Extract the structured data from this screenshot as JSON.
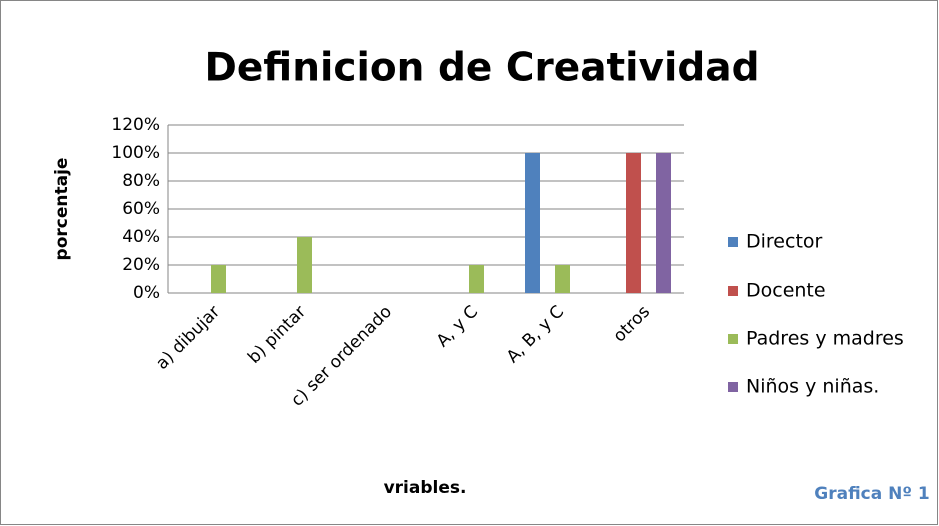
{
  "chart_data": {
    "type": "bar",
    "title": "Definicion de Creatividad",
    "x_label": "vriables.",
    "y_label": "porcentaje",
    "annotation": "Grafica Nº 1",
    "categories": [
      "a) dibujar",
      "b) pintar",
      "c) ser ordenado",
      "A, y C",
      "A, B, y C",
      "otros"
    ],
    "series": [
      {
        "name": "Director",
        "color": "#4f81bd",
        "values": [
          0,
          0,
          0,
          0,
          100,
          0
        ]
      },
      {
        "name": "Docente",
        "color": "#c0504d",
        "values": [
          0,
          0,
          0,
          0,
          0,
          100
        ]
      },
      {
        "name": "Padres y madres",
        "color": "#9bbb59",
        "values": [
          20,
          40,
          0,
          20,
          20,
          0
        ]
      },
      {
        "name": "Niños y niñas.",
        "color": "#8064a2",
        "values": [
          0,
          0,
          0,
          0,
          0,
          100
        ]
      }
    ],
    "ylim": [
      0,
      120
    ],
    "yticks": [
      {
        "value": 0,
        "label": "0%"
      },
      {
        "value": 20,
        "label": "20%"
      },
      {
        "value": 40,
        "label": "40%"
      },
      {
        "value": 60,
        "label": "60%"
      },
      {
        "value": 80,
        "label": "80%"
      },
      {
        "value": 100,
        "label": "100%"
      },
      {
        "value": 120,
        "label": "120%"
      }
    ],
    "grid": true,
    "legend": "right"
  }
}
